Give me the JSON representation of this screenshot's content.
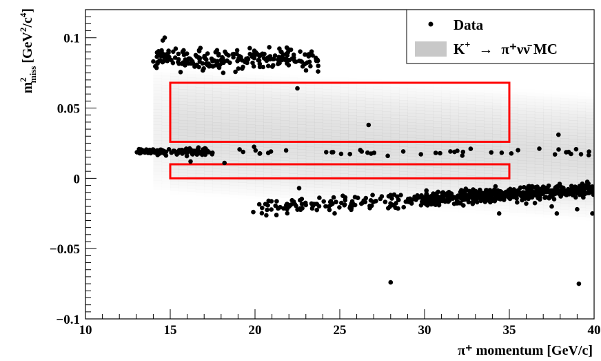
{
  "chart_data": {
    "type": "scatter",
    "title": "",
    "xlabel": "π⁺ momentum [GeV/c]",
    "ylabel": {
      "main": "m",
      "sup": "2",
      "sub": "miss",
      "units": "[GeV",
      "units_sup1": "2",
      "units_mid": "/c",
      "units_sup2": "4",
      "units_end": "]"
    },
    "xlim": [
      10,
      40
    ],
    "ylim": [
      -0.1,
      0.12
    ],
    "x_ticks": [
      10,
      15,
      20,
      25,
      30,
      35,
      40
    ],
    "y_ticks": [
      -0.1,
      -0.05,
      0,
      0.05,
      0.1
    ],
    "x_tick_labels": [
      "10",
      "15",
      "20",
      "25",
      "30",
      "35",
      "40"
    ],
    "y_tick_labels": [
      "−0.1",
      "−0.05",
      "0",
      "0.05",
      "0.1"
    ],
    "grid": false,
    "legend": {
      "placement": "top-right",
      "entries": [
        {
          "label": "Data",
          "marker": "dot",
          "color": "#000000"
        },
        {
          "label_main": "K",
          "label_sup": "+",
          "arrow": "→",
          "label_rest": "π⁺νν̄ MC",
          "marker": "box",
          "color": "#c8c8c8"
        }
      ]
    },
    "signal_regions": [
      {
        "name": "Region 1",
        "x": [
          15,
          35
        ],
        "y": [
          0.0,
          0.01
        ],
        "color": "#ff0000"
      },
      {
        "name": "Region 2",
        "x": [
          15,
          35
        ],
        "y": [
          0.026,
          0.068
        ],
        "color": "#ff0000"
      }
    ],
    "mc_band": {
      "series": "K+ → π+νν̄ MC",
      "x": [
        14,
        40
      ],
      "y_center_at_x": [
        [
          14,
          0.035
        ],
        [
          40,
          0.015
        ]
      ],
      "half_width": 0.045,
      "color": "#bfbfbf"
    },
    "series": [
      {
        "name": "Data",
        "color": "#000000",
        "clusters": [
          {
            "kind": "band",
            "x": [
              14.0,
              23.8
            ],
            "y_center": [
              0.086,
              0.084
            ],
            "spread": 0.004,
            "count": 230,
            "seed": 11
          },
          {
            "kind": "band",
            "x": [
              13.0,
              40.0
            ],
            "y_center": [
              0.019,
              0.018
            ],
            "spread": 0.0012,
            "count": 150,
            "seed": 23,
            "denser_below_x": 17.5
          },
          {
            "kind": "band",
            "x": [
              20.0,
              40.0
            ],
            "y_center": [
              -0.021,
              -0.008
            ],
            "spread": 0.0025,
            "count": 650,
            "seed": 37,
            "denser_above_x": 30.0
          }
        ],
        "isolated_points": [
          [
            22.5,
            0.064
          ],
          [
            26.7,
            0.038
          ],
          [
            37.9,
            0.031
          ],
          [
            39.7,
            0.019
          ],
          [
            16.2,
            0.012
          ],
          [
            18.2,
            0.011
          ],
          [
            22.6,
            -0.007
          ],
          [
            19.9,
            -0.024
          ],
          [
            20.8,
            -0.016
          ],
          [
            34.4,
            -0.025
          ],
          [
            37.8,
            -0.025
          ],
          [
            39.0,
            -0.022
          ],
          [
            39.9,
            -0.025
          ],
          [
            37.5,
            -0.02
          ],
          [
            28.0,
            -0.074
          ],
          [
            39.1,
            -0.075
          ],
          [
            35.6,
            -0.011
          ],
          [
            36.8,
            -0.015
          ]
        ]
      }
    ]
  }
}
